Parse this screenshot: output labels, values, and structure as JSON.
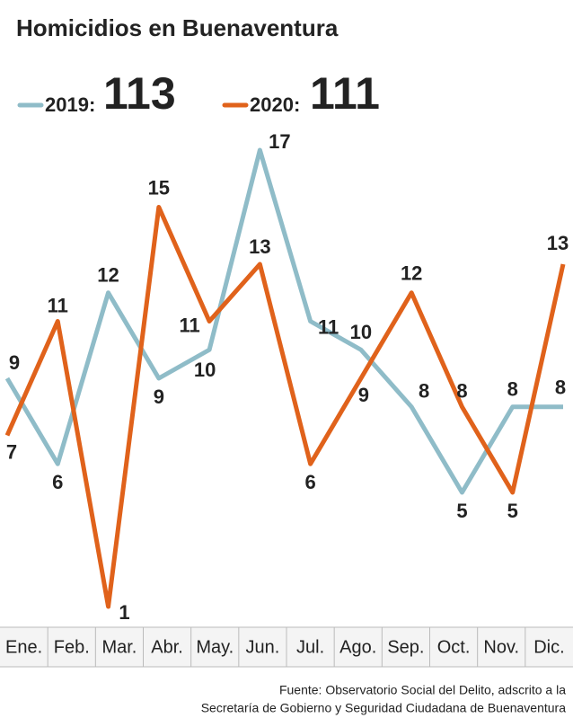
{
  "chart_data": {
    "type": "line",
    "title": "Homicidios en Buenaventura",
    "categories": [
      "Ene.",
      "Feb.",
      "Mar.",
      "Abr.",
      "May.",
      "Jun.",
      "Jul.",
      "Ago.",
      "Sep.",
      "Oct.",
      "Nov.",
      "Dic."
    ],
    "series": [
      {
        "name": "2019:",
        "total": 113,
        "color": "#8fbcc8",
        "values": [
          9,
          6,
          12,
          9,
          10,
          17,
          11,
          10,
          8,
          5,
          8,
          8
        ]
      },
      {
        "name": "2020:",
        "total": 111,
        "color": "#e0621b",
        "values": [
          7,
          11,
          1,
          15,
          11,
          13,
          6,
          9,
          12,
          8,
          5,
          13
        ]
      }
    ],
    "source": [
      "Fuente: Observatorio Social del Delito, adscrito a la",
      "Secretaría de Gobierno y Seguridad Ciudadana de Buenaventura"
    ]
  }
}
